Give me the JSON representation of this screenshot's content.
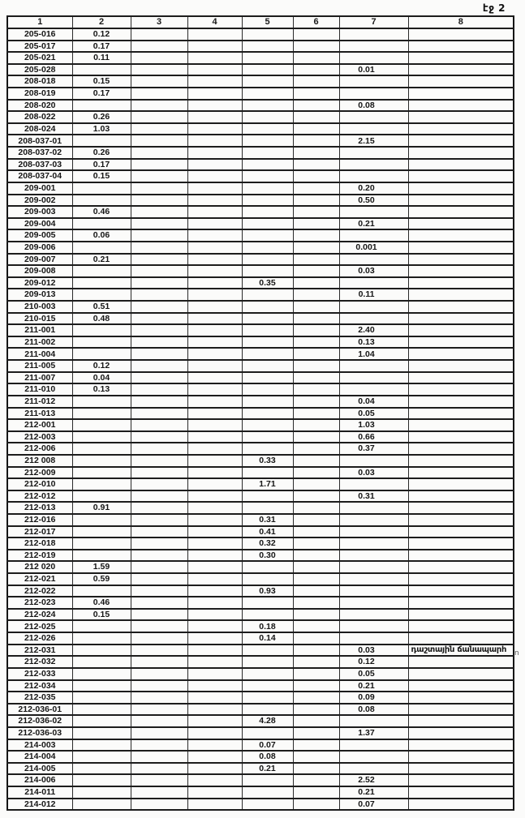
{
  "document": {
    "page_label": "էջ 2",
    "margin_note": "ո"
  },
  "table": {
    "headers": [
      "1",
      "2",
      "3",
      "4",
      "5",
      "6",
      "7",
      "8"
    ],
    "rows": [
      [
        "205-016",
        "0.12",
        "",
        "",
        "",
        "",
        "",
        ""
      ],
      [
        "205-017",
        "0.17",
        "",
        "",
        "",
        "",
        "",
        ""
      ],
      [
        "205-021",
        "0.11",
        "",
        "",
        "",
        "",
        "",
        ""
      ],
      [
        "205-028",
        "",
        "",
        "",
        "",
        "",
        "0.01",
        ""
      ],
      [
        "208-018",
        "0.15",
        "",
        "",
        "",
        "",
        "",
        ""
      ],
      [
        "208-019",
        "0.17",
        "",
        "",
        "",
        "",
        "",
        ""
      ],
      [
        "208-020",
        "",
        "",
        "",
        "",
        "",
        "0.08",
        ""
      ],
      [
        "208-022",
        "0.26",
        "",
        "",
        "",
        "",
        "",
        ""
      ],
      [
        "208-024",
        "1.03",
        "",
        "",
        "",
        "",
        "",
        ""
      ],
      [
        "208-037-01",
        "",
        "",
        "",
        "",
        "",
        "2.15",
        ""
      ],
      [
        "208-037-02",
        "0.26",
        "",
        "",
        "",
        "",
        "",
        ""
      ],
      [
        "208-037-03",
        "0.17",
        "",
        "",
        "",
        "",
        "",
        ""
      ],
      [
        "208-037-04",
        "0.15",
        "",
        "",
        "",
        "",
        "",
        ""
      ],
      [
        "209-001",
        "",
        "",
        "",
        "",
        "",
        "0.20",
        ""
      ],
      [
        "209-002",
        "",
        "",
        "",
        "",
        "",
        "0.50",
        ""
      ],
      [
        "209-003",
        "0.46",
        "",
        "",
        "",
        "",
        "",
        ""
      ],
      [
        "209-004",
        "",
        "",
        "",
        "",
        "",
        "0.21",
        ""
      ],
      [
        "209-005",
        "0.06",
        "",
        "",
        "",
        "",
        "",
        ""
      ],
      [
        "209-006",
        "",
        "",
        "",
        "",
        "",
        "0.001",
        ""
      ],
      [
        "209-007",
        "0.21",
        "",
        "",
        "",
        "",
        "",
        ""
      ],
      [
        "209-008",
        "",
        "",
        "",
        "",
        "",
        "0.03",
        ""
      ],
      [
        "209-012",
        "",
        "",
        "",
        "0.35",
        "",
        "",
        ""
      ],
      [
        "209-013",
        "",
        "",
        "",
        "",
        "",
        "0.11",
        ""
      ],
      [
        "210-003",
        "0.51",
        "",
        "",
        "",
        "",
        "",
        ""
      ],
      [
        "210-015",
        "0.48",
        "",
        "",
        "",
        "",
        "",
        ""
      ],
      [
        "211-001",
        "",
        "",
        "",
        "",
        "",
        "2.40",
        ""
      ],
      [
        "211-002",
        "",
        "",
        "",
        "",
        "",
        "0.13",
        ""
      ],
      [
        "211-004",
        "",
        "",
        "",
        "",
        "",
        "1.04",
        ""
      ],
      [
        "211-005",
        "0.12",
        "",
        "",
        "",
        "",
        "",
        ""
      ],
      [
        "211-007",
        "0.04",
        "",
        "",
        "",
        "",
        "",
        ""
      ],
      [
        "211-010",
        "0.13",
        "",
        "",
        "",
        "",
        "",
        ""
      ],
      [
        "211-012",
        "",
        "",
        "",
        "",
        "",
        "0.04",
        ""
      ],
      [
        "211-013",
        "",
        "",
        "",
        "",
        "",
        "0.05",
        ""
      ],
      [
        "212-001",
        "",
        "",
        "",
        "",
        "",
        "1.03",
        ""
      ],
      [
        "212-003",
        "",
        "",
        "",
        "",
        "",
        "0.66",
        ""
      ],
      [
        "212-006",
        "",
        "",
        "",
        "",
        "",
        "0.37",
        ""
      ],
      [
        "212 008",
        "",
        "",
        "",
        "0.33",
        "",
        "",
        ""
      ],
      [
        "212-009",
        "",
        "",
        "",
        "",
        "",
        "0.03",
        ""
      ],
      [
        "212-010",
        "",
        "",
        "",
        "1.71",
        "",
        "",
        ""
      ],
      [
        "212-012",
        "",
        "",
        "",
        "",
        "",
        "0.31",
        ""
      ],
      [
        "212-013",
        "0.91",
        "",
        "",
        "",
        "",
        "",
        ""
      ],
      [
        "212-016",
        "",
        "",
        "",
        "0.31",
        "",
        "",
        ""
      ],
      [
        "212-017",
        "",
        "",
        "",
        "0.41",
        "",
        "",
        ""
      ],
      [
        "212-018",
        "",
        "",
        "",
        "0.32",
        "",
        "",
        ""
      ],
      [
        "212-019",
        "",
        "",
        "",
        "0.30",
        "",
        "",
        ""
      ],
      [
        "212 020",
        "1.59",
        "",
        "",
        "",
        "",
        "",
        ""
      ],
      [
        "212-021",
        "0.59",
        "",
        "",
        "",
        "",
        "",
        ""
      ],
      [
        "212-022",
        "",
        "",
        "",
        "0.93",
        "",
        "",
        ""
      ],
      [
        "212-023",
        "0.46",
        "",
        "",
        "",
        "",
        "",
        ""
      ],
      [
        "212-024",
        "0.15",
        "",
        "",
        "",
        "",
        "",
        ""
      ],
      [
        "212-025",
        "",
        "",
        "",
        "0.18",
        "",
        "",
        ""
      ],
      [
        "212-026",
        "",
        "",
        "",
        "0.14",
        "",
        "",
        ""
      ],
      [
        "212-031",
        "",
        "",
        "",
        "",
        "",
        "0.03",
        "դաշտային ճանապարհ"
      ],
      [
        "212-032",
        "",
        "",
        "",
        "",
        "",
        "0.12",
        ""
      ],
      [
        "212-033",
        "",
        "",
        "",
        "",
        "",
        "0.05",
        ""
      ],
      [
        "212-034",
        "",
        "",
        "",
        "",
        "",
        "0.21",
        ""
      ],
      [
        "212-035",
        "",
        "",
        "",
        "",
        "",
        "0.09",
        ""
      ],
      [
        "212-036-01",
        "",
        "",
        "",
        "",
        "",
        "0.08",
        ""
      ],
      [
        "212-036-02",
        "",
        "",
        "",
        "4.28",
        "",
        "",
        ""
      ],
      [
        "212-036-03",
        "",
        "",
        "",
        "",
        "",
        "1.37",
        ""
      ],
      [
        "214-003",
        "",
        "",
        "",
        "0.07",
        "",
        "",
        ""
      ],
      [
        "214-004",
        "",
        "",
        "",
        "0.08",
        "",
        "",
        ""
      ],
      [
        "214-005",
        "",
        "",
        "",
        "0.21",
        "",
        "",
        ""
      ],
      [
        "214-006",
        "",
        "",
        "",
        "",
        "",
        "2.52",
        ""
      ],
      [
        "214-011",
        "",
        "",
        "",
        "",
        "",
        "0.21",
        ""
      ],
      [
        "214-012",
        "",
        "",
        "",
        "",
        "",
        "0.07",
        ""
      ]
    ]
  }
}
